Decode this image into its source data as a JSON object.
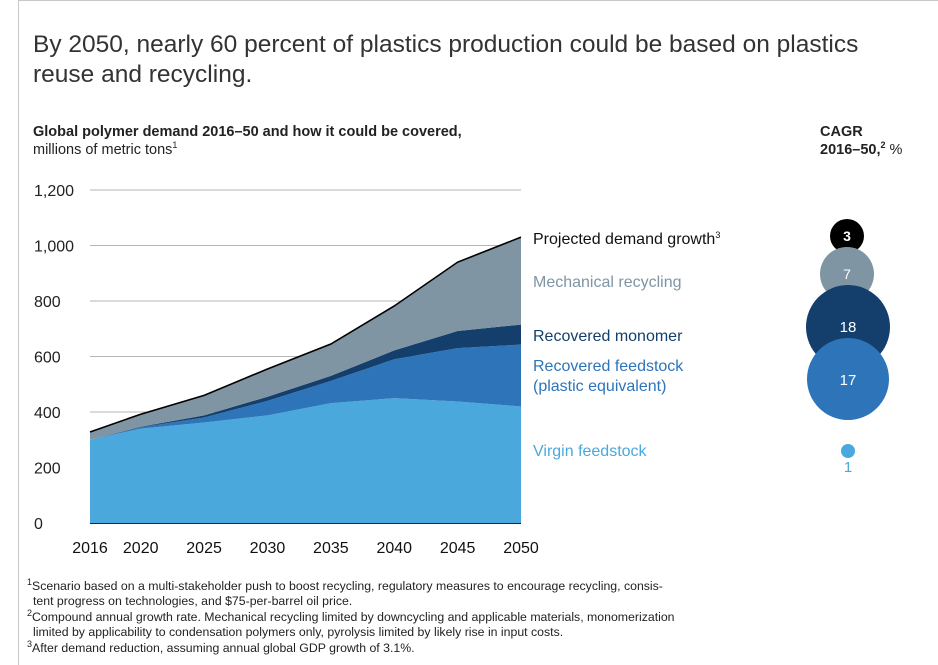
{
  "title": "By 2050, nearly 60 percent of plastics production could be based on plastics reuse and recycling.",
  "subtitle": {
    "bold": "Global polymer demand 2016–50 and how it could be covered,",
    "normal": " millions of metric tons",
    "note": "1"
  },
  "cagr_header": {
    "line1": "CAGR",
    "line2": "2016–50,",
    "note": "2",
    "unit": " %"
  },
  "colors": {
    "virgin": "#4aa8dd",
    "recovered_feedstock": "#2d74b9",
    "recovered_monomer": "#143f6c",
    "mechanical": "#7f95a3",
    "demand": "#000000"
  },
  "chart_data": {
    "type": "area",
    "x": [
      2016,
      2020,
      2025,
      2030,
      2035,
      2040,
      2045,
      2050
    ],
    "ylim": [
      0,
      1200
    ],
    "yticks": [
      0,
      200,
      400,
      600,
      800,
      1000,
      1200
    ],
    "ytick_labels": [
      "0",
      "200",
      "400",
      "600",
      "800",
      "1,000",
      "1,200"
    ],
    "grid": true,
    "series": [
      {
        "name": "Virgin feedstock",
        "values": [
          300,
          340,
          362,
          388,
          432,
          450,
          438,
          420
        ],
        "cagr": "1",
        "color": "#4aa8dd"
      },
      {
        "name": "Recovered feedstock (plastic equivalent)",
        "values": [
          0,
          5,
          18,
          52,
          80,
          140,
          192,
          223
        ],
        "cagr": "17",
        "color": "#2d74b9"
      },
      {
        "name": "Recovered monomer",
        "values": [
          0,
          2,
          8,
          15,
          18,
          32,
          62,
          72
        ],
        "cagr": "18",
        "color": "#143f6c"
      },
      {
        "name": "Mechanical recycling",
        "values": [
          28,
          45,
          72,
          100,
          115,
          160,
          248,
          315
        ],
        "cagr": "7",
        "color": "#7f95a3"
      }
    ],
    "demand_line": {
      "name": "Projected demand growth",
      "note": "3",
      "values": [
        328,
        392,
        460,
        555,
        645,
        782,
        940,
        1030
      ],
      "cagr": "3"
    }
  },
  "legend": {
    "demand": {
      "label": "Projected demand growth",
      "note": "3",
      "cagr": "3"
    },
    "mechanical": {
      "label": "Mechanical recycling",
      "cagr": "7"
    },
    "monomer": {
      "label": "Recovered monomer",
      "cagr": "18"
    },
    "feedstock": {
      "line1": "Recovered feedstock",
      "line2": "(plastic equivalent)",
      "cagr": "17"
    },
    "virgin": {
      "label": "Virgin feedstock",
      "cagr": "1"
    }
  },
  "footnotes": {
    "f1_note": "1",
    "f1a": "Scenario based on a multi-stakeholder push to boost recycling, regulatory measures to encourage recycling, consis-",
    "f1b": "tent progress on technologies, and $75-per-barrel oil price.",
    "f2_note": "2",
    "f2a": "Compound annual growth rate. Mechanical recycling limited by downcycling and applicable materials, monomerization",
    "f2b": "limited by applicability to condensation polymers only, pyrolysis limited by likely rise in input costs.",
    "f3_note": "3",
    "f3a": "After demand reduction, assuming annual global GDP growth of 3.1%."
  }
}
